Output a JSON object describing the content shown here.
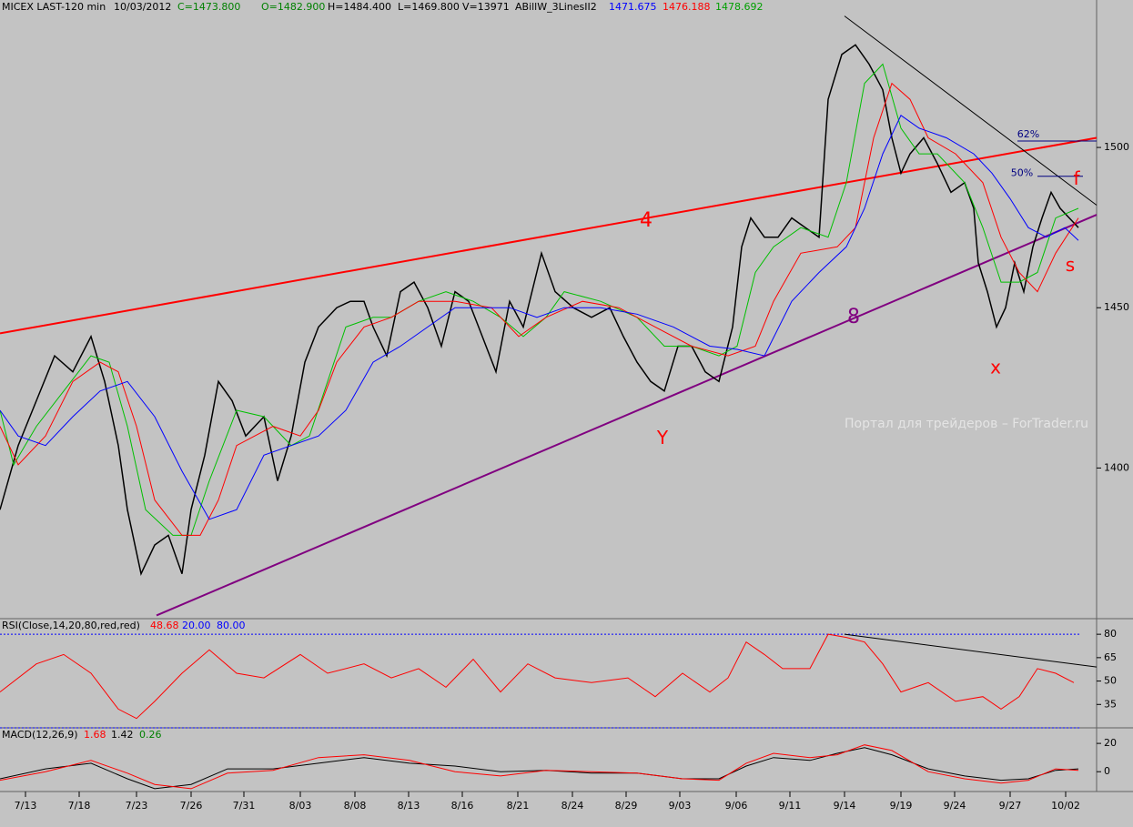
{
  "chart_data": [
    {
      "type": "line",
      "title": "MICEX LAST-120 min",
      "header": [
        {
          "text": "10/03/2012",
          "color": "#000000"
        },
        {
          "text": "C=1473.800",
          "color": "#008000"
        },
        {
          "text": "O=1482.900",
          "color": "#008000"
        },
        {
          "text": "H=1484.400",
          "color": "#000000"
        },
        {
          "text": "L=1469.800",
          "color": "#000000"
        },
        {
          "text": "V=13971",
          "color": "#000000"
        },
        {
          "text": "ABillW_3LinesII2",
          "color": "#000000"
        },
        {
          "text": "1471.675",
          "color": "#0000ff"
        },
        {
          "text": "1476.188",
          "color": "#ff0000"
        },
        {
          "text": "1478.692",
          "color": "#00a000"
        }
      ],
      "xlim": [
        0,
        241
      ],
      "xticks": [
        {
          "value": 5.6,
          "label": "7/13"
        },
        {
          "value": 17.4,
          "label": "7/18"
        },
        {
          "value": 30,
          "label": "7/23"
        },
        {
          "value": 42,
          "label": "7/26"
        },
        {
          "value": 53.6,
          "label": "7/31"
        },
        {
          "value": 66,
          "label": "8/03"
        },
        {
          "value": 78,
          "label": "8/08"
        },
        {
          "value": 89.8,
          "label": "8/13"
        },
        {
          "value": 101.6,
          "label": "8/16"
        },
        {
          "value": 113.8,
          "label": "8/21"
        },
        {
          "value": 125.8,
          "label": "8/24"
        },
        {
          "value": 137.6,
          "label": "8/29"
        },
        {
          "value": 149.4,
          "label": "9/03"
        },
        {
          "value": 161.8,
          "label": "9/06"
        },
        {
          "value": 173.6,
          "label": "9/11"
        },
        {
          "value": 185.6,
          "label": "9/14"
        },
        {
          "value": 198,
          "label": "9/19"
        },
        {
          "value": 209.8,
          "label": "9/24"
        },
        {
          "value": 222,
          "label": "9/27"
        },
        {
          "value": 234.2,
          "label": "10/02"
        }
      ],
      "ylim": [
        1353,
        1546
      ],
      "yticks": [
        1400,
        1450,
        1500
      ],
      "series": [
        {
          "color": "#000000",
          "x": [
            0,
            4,
            8,
            12,
            16,
            20,
            23,
            26,
            28,
            31,
            34,
            37,
            40,
            42,
            45,
            48,
            51,
            54,
            58,
            61,
            64,
            67,
            70,
            74,
            77,
            80,
            82,
            85,
            88,
            91,
            94,
            97,
            100,
            103,
            106,
            109,
            112,
            115,
            119,
            122,
            126,
            130,
            134,
            137,
            140,
            143,
            146,
            149,
            152,
            155,
            158,
            161,
            163,
            165,
            168,
            171,
            174,
            177,
            180,
            182,
            185,
            188,
            191,
            194,
            196,
            198,
            200,
            203,
            206,
            209,
            212,
            214,
            215,
            217,
            219,
            221,
            223,
            225,
            227,
            229,
            231,
            233,
            235,
            237
          ],
          "values": [
            1387,
            1407,
            1421,
            1435,
            1430,
            1441,
            1427,
            1407,
            1387,
            1367,
            1376,
            1379,
            1367,
            1387,
            1404,
            1427,
            1421,
            1410,
            1416,
            1396,
            1410,
            1433,
            1444,
            1450,
            1452,
            1452,
            1444,
            1435,
            1455,
            1458,
            1450,
            1438,
            1455,
            1452,
            1441,
            1430,
            1452,
            1444,
            1467,
            1455,
            1450,
            1447,
            1450,
            1441,
            1433,
            1427,
            1424,
            1438,
            1438,
            1430,
            1427,
            1444,
            1469,
            1478,
            1472,
            1472,
            1478,
            1475,
            1472,
            1515,
            1529,
            1532,
            1526,
            1518,
            1503,
            1492,
            1498,
            1503,
            1495,
            1486,
            1489,
            1481,
            1464,
            1455,
            1444,
            1450,
            1464,
            1455,
            1469,
            1478,
            1486,
            1481,
            1478,
            1475
          ]
        },
        {
          "color": "#00c000",
          "x": [
            0,
            3,
            8,
            14,
            20,
            24,
            28,
            32,
            38,
            42,
            46,
            52,
            58,
            64,
            68,
            72,
            76,
            82,
            86,
            92,
            98,
            104,
            110,
            115,
            120,
            124,
            132,
            140,
            146,
            152,
            158,
            162,
            166,
            170,
            176,
            182,
            186,
            190,
            194,
            198,
            202,
            206,
            212,
            216,
            220,
            224,
            228,
            232,
            237
          ],
          "values": [
            1418,
            1401,
            1413,
            1424,
            1435,
            1433,
            1413,
            1387,
            1379,
            1379,
            1396,
            1418,
            1416,
            1407,
            1410,
            1427,
            1444,
            1447,
            1447,
            1452,
            1455,
            1452,
            1447,
            1441,
            1447,
            1455,
            1452,
            1447,
            1438,
            1438,
            1435,
            1438,
            1461,
            1469,
            1475,
            1472,
            1489,
            1520,
            1526,
            1506,
            1498,
            1498,
            1489,
            1475,
            1458,
            1458,
            1461,
            1478,
            1481
          ]
        },
        {
          "color": "#ff0000",
          "x": [
            0,
            4,
            10,
            16,
            22,
            26,
            30,
            34,
            40,
            44,
            48,
            52,
            60,
            66,
            70,
            74,
            80,
            86,
            92,
            100,
            108,
            114,
            120,
            128,
            136,
            144,
            152,
            160,
            166,
            170,
            176,
            184,
            188,
            192,
            196,
            200,
            204,
            210,
            216,
            220,
            224,
            228,
            232,
            237
          ],
          "values": [
            1413,
            1401,
            1410,
            1427,
            1433,
            1430,
            1413,
            1390,
            1379,
            1379,
            1390,
            1407,
            1413,
            1410,
            1418,
            1433,
            1444,
            1447,
            1452,
            1452,
            1450,
            1441,
            1447,
            1452,
            1450,
            1444,
            1438,
            1435,
            1438,
            1452,
            1467,
            1469,
            1475,
            1503,
            1520,
            1515,
            1503,
            1498,
            1489,
            1472,
            1461,
            1455,
            1467,
            1478
          ]
        },
        {
          "color": "#0000ff",
          "x": [
            0,
            4,
            10,
            16,
            22,
            28,
            34,
            40,
            46,
            52,
            58,
            64,
            70,
            76,
            82,
            88,
            94,
            100,
            106,
            112,
            118,
            124,
            132,
            140,
            148,
            156,
            162,
            168,
            174,
            180,
            186,
            190,
            194,
            198,
            202,
            208,
            214,
            218,
            222,
            226,
            230,
            234,
            237
          ],
          "values": [
            1418,
            1410,
            1407,
            1416,
            1424,
            1427,
            1416,
            1399,
            1384,
            1387,
            1404,
            1407,
            1410,
            1418,
            1433,
            1438,
            1444,
            1450,
            1450,
            1450,
            1447,
            1450,
            1450,
            1448,
            1444,
            1438,
            1437,
            1435,
            1452,
            1461,
            1469,
            1481,
            1498,
            1510,
            1506,
            1503,
            1498,
            1492,
            1484,
            1475,
            1472,
            1475,
            1471
          ]
        }
      ],
      "trendlines": [
        {
          "color": "#ff0000",
          "x": [
            0,
            241
          ],
          "values": [
            1442,
            1503
          ]
        },
        {
          "color": "#800080",
          "x": [
            34.4,
            241
          ],
          "values": [
            1354,
            1479
          ]
        },
        {
          "color": "#000000",
          "x": [
            185.6,
            241
          ],
          "values": [
            1541,
            1482
          ]
        },
        {
          "color": "#000080",
          "x": [
            223.6,
            241
          ],
          "values": [
            1502,
            1502
          ]
        },
        {
          "color": "#000080",
          "x": [
            228,
            238
          ],
          "values": [
            1491,
            1491
          ]
        }
      ],
      "annotations": [
        {
          "text": "4",
          "color": "#ff0000"
        },
        {
          "text": "8",
          "color": "#800080"
        },
        {
          "text": "Y",
          "color": "#ff0000"
        },
        {
          "text": "x",
          "color": "#ff0000"
        },
        {
          "text": "f",
          "color": "#ff0000"
        },
        {
          "text": "s",
          "color": "#ff0000"
        },
        {
          "text": "62%",
          "color": "#000080"
        },
        {
          "text": "50%",
          "color": "#000080"
        }
      ],
      "watermark": "Портал для трейдеров – ForTrader.ru"
    },
    {
      "type": "line",
      "title": "RSI(Close,14,20,80,red,red)",
      "header": [
        {
          "text": "48.68",
          "color": "#ff0000"
        },
        {
          "text": "20.00",
          "color": "#0000ff"
        },
        {
          "text": "80.00",
          "color": "#0000ff"
        }
      ],
      "ylim": [
        20,
        90
      ],
      "yticks": [
        35,
        50,
        65,
        80
      ],
      "levels": [
        20,
        80
      ],
      "series": [
        {
          "color": "#ff0000",
          "x": [
            0,
            8,
            14,
            20,
            26,
            30,
            34,
            40,
            46,
            52,
            58,
            66,
            72,
            80,
            86,
            92,
            98,
            104,
            110,
            116,
            122,
            130,
            138,
            144,
            150,
            156,
            160,
            164,
            168,
            172,
            178,
            182,
            186,
            190,
            194,
            198,
            204,
            210,
            216,
            220,
            224,
            228,
            232,
            236
          ],
          "values": [
            43,
            61,
            67,
            55,
            32,
            26,
            37,
            55,
            70,
            55,
            52,
            67,
            55,
            61,
            52,
            58,
            46,
            64,
            43,
            61,
            52,
            49,
            52,
            40,
            55,
            43,
            52,
            75,
            67,
            58,
            58,
            80,
            78,
            75,
            61,
            43,
            49,
            37,
            40,
            32,
            40,
            58,
            55,
            49
          ]
        }
      ],
      "trendlines": [
        {
          "color": "#000000",
          "x": [
            185.6,
            241
          ],
          "values": [
            80,
            59
          ]
        }
      ]
    },
    {
      "type": "line",
      "title": "MACD(12,26,9)",
      "header": [
        {
          "text": "1.68",
          "color": "#ff0000"
        },
        {
          "text": "1.42",
          "color": "#000000"
        },
        {
          "text": "0.26",
          "color": "#008000"
        }
      ],
      "ylim": [
        -14,
        31
      ],
      "yticks": [
        0,
        20
      ],
      "series": [
        {
          "color": "#000000",
          "x": [
            0,
            10,
            20,
            28,
            34,
            42,
            50,
            60,
            70,
            80,
            90,
            100,
            110,
            120,
            130,
            140,
            150,
            158,
            164,
            170,
            178,
            184,
            190,
            196,
            204,
            212,
            220,
            226,
            232,
            237
          ],
          "values": [
            -5,
            2,
            6,
            -5,
            -12,
            -9,
            2,
            2,
            6,
            10,
            6,
            4,
            0,
            1,
            -1,
            -1,
            -5,
            -5,
            4,
            10,
            8,
            13,
            17,
            12,
            2,
            -3,
            -6,
            -5,
            1,
            2
          ]
        },
        {
          "color": "#ff0000",
          "x": [
            0,
            10,
            20,
            28,
            34,
            42,
            50,
            60,
            70,
            80,
            90,
            100,
            110,
            120,
            130,
            140,
            150,
            158,
            164,
            170,
            178,
            184,
            190,
            196,
            204,
            212,
            220,
            226,
            232,
            237
          ],
          "values": [
            -6,
            0,
            8,
            -1,
            -9,
            -12,
            -1,
            1,
            10,
            12,
            8,
            0,
            -3,
            1,
            0,
            -1,
            -5,
            -6,
            6,
            13,
            10,
            12,
            19,
            15,
            0,
            -5,
            -8,
            -6,
            2,
            1
          ]
        }
      ]
    }
  ]
}
